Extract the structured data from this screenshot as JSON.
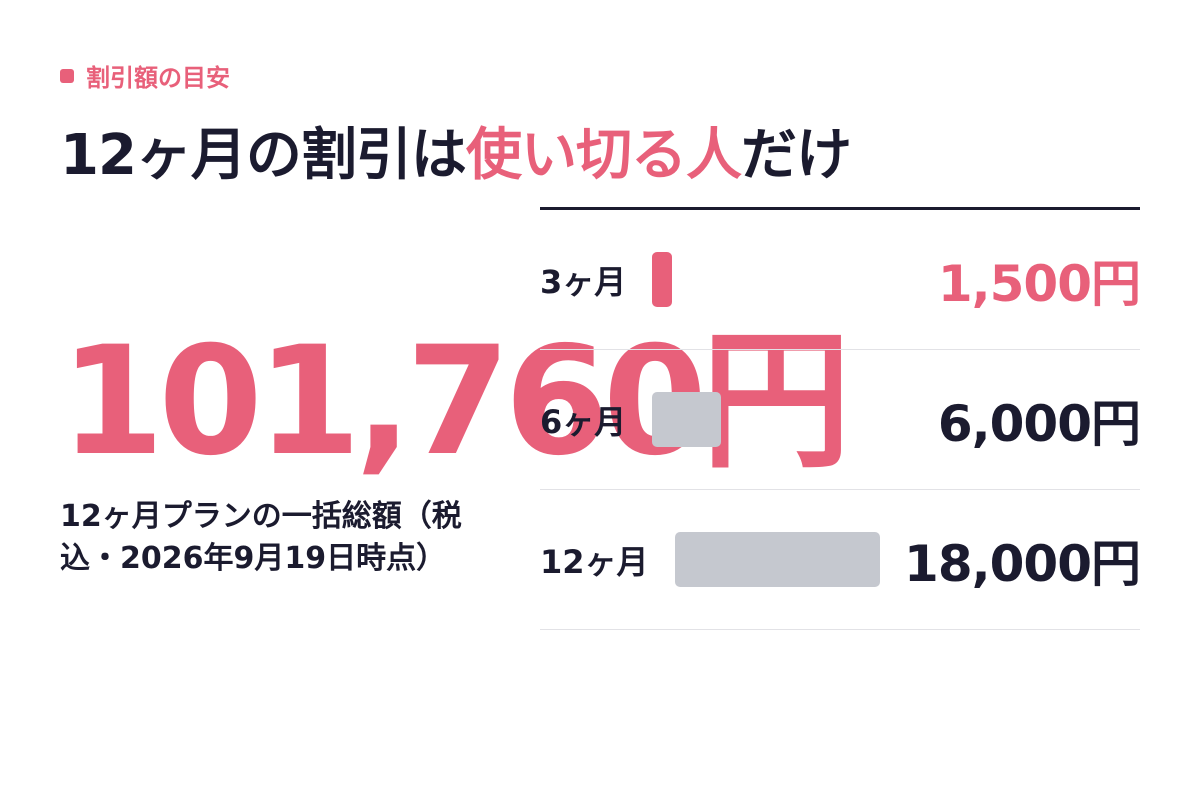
{
  "chart_data": {
    "type": "bar",
    "eyebrow": "割引額の目安",
    "title_parts": [
      "12ヶ月の割引は",
      "使い切る人",
      "だけ"
    ],
    "total": "101,760円",
    "caption": "12ヶ月プランの一括総額（税込・2026年9月19日時点）",
    "categories": [
      "3ヶ月",
      "6ヶ月",
      "12ヶ月"
    ],
    "values": [
      1500,
      6000,
      18000
    ],
    "value_labels": [
      "1,500円",
      "6,000円",
      "18,000円"
    ],
    "colors": [
      "#e8607a",
      "#c5c8cf",
      "#c5c8cf"
    ],
    "label_colors": [
      "#e8607a",
      "#1b1b2f",
      "#1b1b2f"
    ]
  }
}
